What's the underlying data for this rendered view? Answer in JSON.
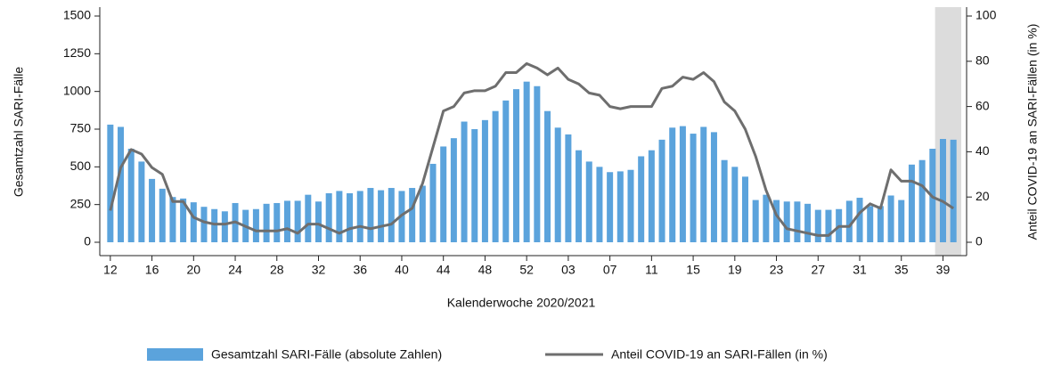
{
  "chart_data": {
    "type": "bar_line",
    "xlabel": "Kalenderwoche 2020/2021",
    "ylabel": "Gesamtzahl SARI-Fälle",
    "y2label": "Anteil COVID-19 an SARI-Fällen (in %)",
    "categories": [
      "12",
      null,
      null,
      null,
      "16",
      null,
      null,
      null,
      "20",
      null,
      null,
      null,
      "24",
      null,
      null,
      null,
      "28",
      null,
      null,
      null,
      "32",
      null,
      null,
      null,
      "36",
      null,
      null,
      null,
      "40",
      null,
      null,
      null,
      "44",
      null,
      null,
      null,
      "48",
      null,
      null,
      null,
      "52",
      null,
      null,
      null,
      "03",
      null,
      null,
      null,
      "07",
      null,
      null,
      null,
      "11",
      null,
      null,
      null,
      "15",
      null,
      null,
      null,
      "19",
      null,
      null,
      null,
      "23",
      null,
      null,
      null,
      "27",
      null,
      null,
      null,
      "31",
      null,
      null,
      null,
      "35",
      null,
      null,
      null,
      "39",
      null
    ],
    "series": [
      {
        "name": "Gesamtzahl SARI-Fälle (absolute Zahlen)",
        "type": "bar",
        "color": "#5ba3dc",
        "values": [
          780,
          765,
          620,
          535,
          420,
          355,
          300,
          290,
          265,
          235,
          220,
          205,
          260,
          215,
          220,
          255,
          260,
          275,
          275,
          315,
          270,
          325,
          340,
          325,
          340,
          360,
          345,
          360,
          340,
          360,
          375,
          520,
          635,
          690,
          800,
          750,
          810,
          870,
          940,
          1015,
          1065,
          1035,
          870,
          760,
          715,
          610,
          535,
          500,
          465,
          470,
          480,
          570,
          610,
          680,
          760,
          770,
          720,
          765,
          730,
          545,
          500,
          435,
          280,
          315,
          280,
          270,
          270,
          255,
          215,
          215,
          220,
          275,
          295,
          240,
          240,
          310,
          280,
          515,
          545,
          620,
          685,
          680
        ]
      },
      {
        "name": "Anteil COVID-19 an SARI-Fällen (in %)",
        "type": "line",
        "axis": "y2",
        "color": "#6e6e6e",
        "values": [
          14,
          33,
          41,
          39,
          33,
          30,
          18,
          18,
          11,
          9,
          8,
          8,
          9,
          7,
          5,
          5,
          5,
          6,
          4,
          8,
          8,
          6,
          4,
          6,
          7,
          6,
          7,
          8,
          12,
          15,
          26,
          42,
          58,
          60,
          66,
          67,
          67,
          69,
          75,
          75,
          79,
          77,
          74,
          77,
          72,
          70,
          66,
          65,
          60,
          59,
          60,
          60,
          60,
          68,
          69,
          73,
          72,
          75,
          71,
          62,
          58,
          50,
          38,
          23,
          12,
          6,
          5,
          4,
          3,
          3,
          7,
          7,
          13,
          17,
          15,
          32,
          27,
          27,
          25,
          20,
          18,
          15
        ]
      }
    ],
    "ylim": [
      0,
      1500
    ],
    "yticks": [
      0,
      250,
      500,
      750,
      1000,
      1250,
      1500
    ],
    "y2lim": [
      0,
      100
    ],
    "y2ticks": [
      0,
      20,
      40,
      60,
      80,
      100
    ],
    "shade_color": "#dcdcdc"
  }
}
